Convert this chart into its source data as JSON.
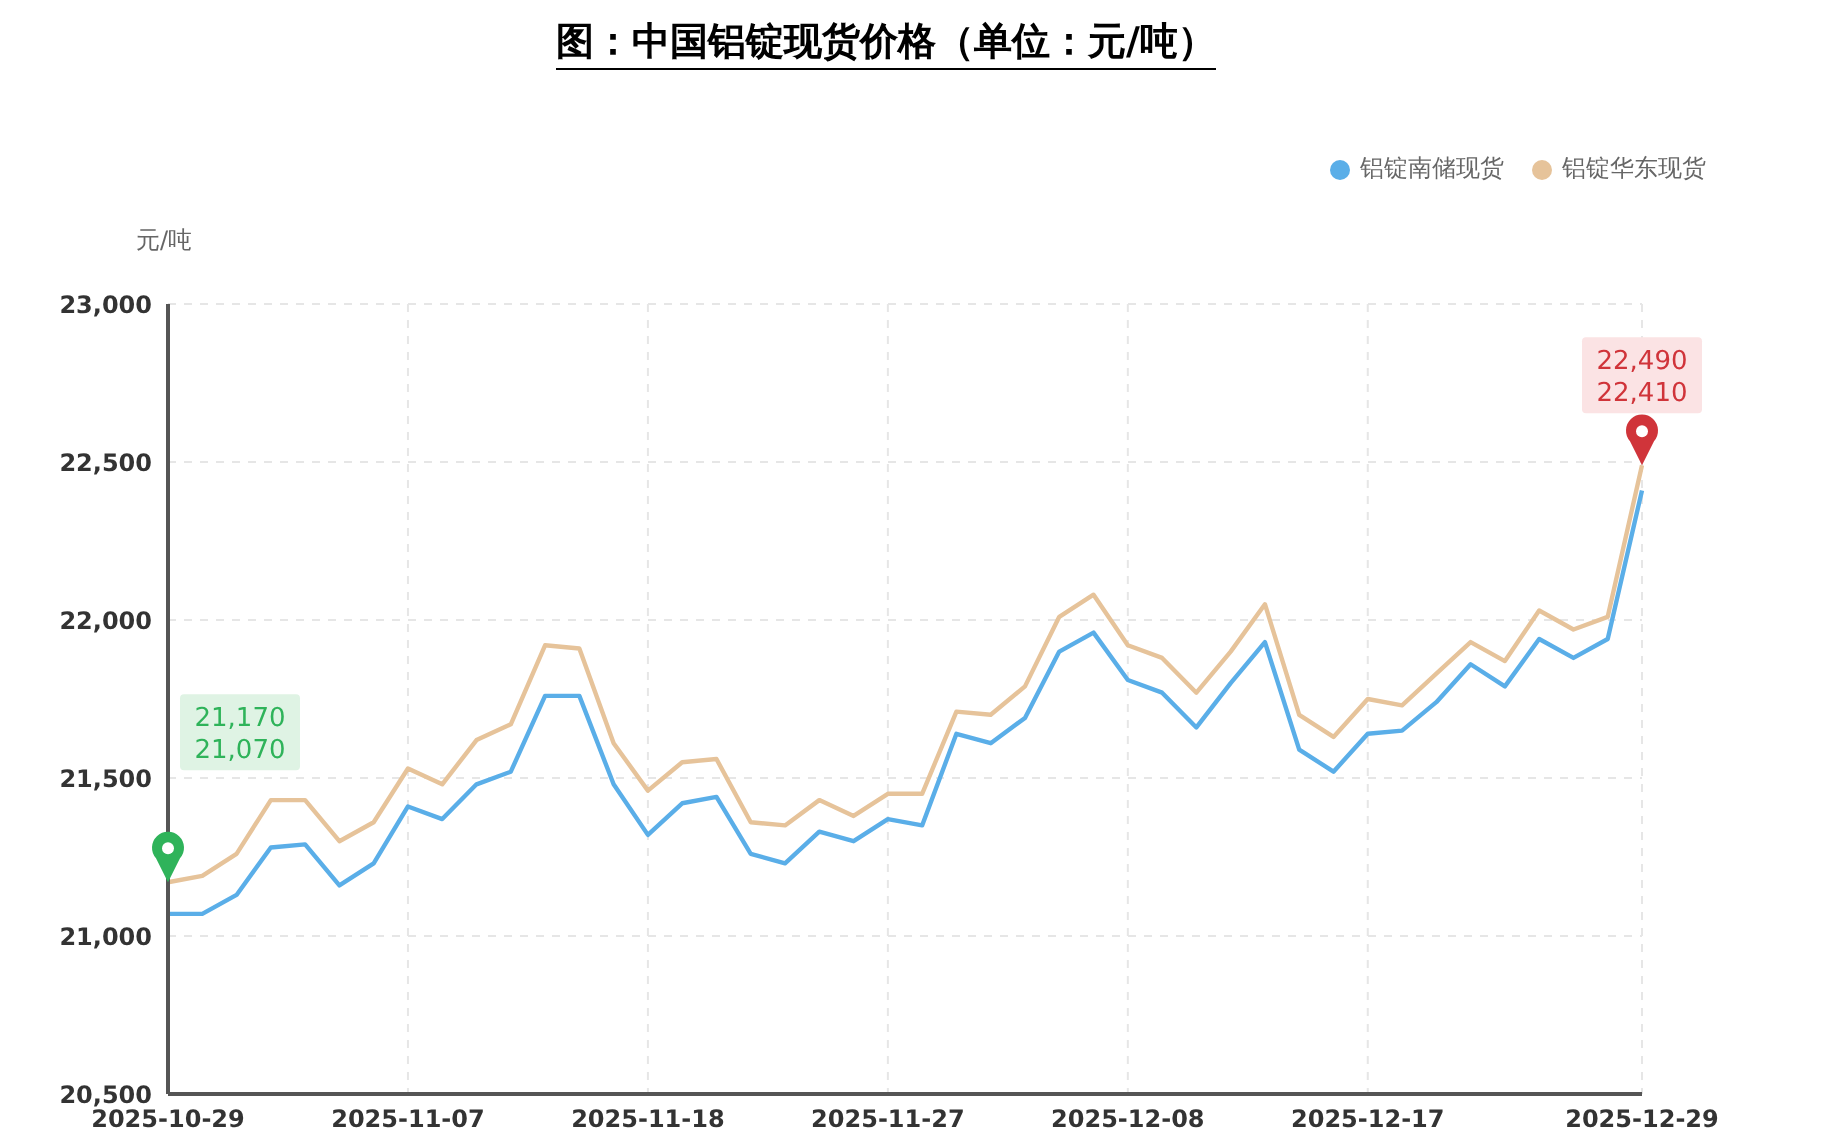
{
  "chart_data": {
    "type": "line",
    "title": "图：中国铝锭现货价格（单位：元/吨）",
    "ylabel": "元/吨",
    "categories": [
      "2025-10-29",
      null,
      null,
      null,
      null,
      null,
      null,
      "2025-11-07",
      null,
      null,
      null,
      null,
      null,
      null,
      "2025-11-18",
      null,
      null,
      null,
      null,
      null,
      null,
      "2025-11-27",
      null,
      null,
      null,
      null,
      null,
      null,
      "2025-12-08",
      null,
      null,
      null,
      null,
      null,
      null,
      "2025-12-17",
      null,
      null,
      null,
      null,
      null,
      null,
      null,
      "2025-12-29"
    ],
    "series": [
      {
        "name": "铝锭南储现货",
        "color": "#5aaee8",
        "values": [
          21070,
          21070,
          21130,
          21280,
          21290,
          21160,
          21230,
          21410,
          21370,
          21480,
          21520,
          21760,
          21760,
          21480,
          21320,
          21420,
          21440,
          21260,
          21230,
          21330,
          21300,
          21370,
          21350,
          21640,
          21610,
          21690,
          21900,
          21960,
          21810,
          21770,
          21660,
          21800,
          21930,
          21590,
          21520,
          21640,
          21650,
          21740,
          21860,
          21790,
          21940,
          21880,
          21940,
          22410
        ]
      },
      {
        "name": "铝锭华东现货",
        "color": "#e6c39a",
        "values": [
          21170,
          21190,
          21260,
          21430,
          21430,
          21300,
          21360,
          21530,
          21480,
          21620,
          21670,
          21920,
          21910,
          21610,
          21460,
          21550,
          21560,
          21360,
          21350,
          21430,
          21380,
          21450,
          21450,
          21710,
          21700,
          21790,
          22010,
          22080,
          21920,
          21880,
          21770,
          21900,
          22050,
          21700,
          21630,
          21750,
          21730,
          21830,
          21930,
          21870,
          22030,
          21970,
          22010,
          22490
        ]
      }
    ],
    "ylim": [
      20500,
      23000
    ],
    "yticks": [
      {
        "value": 20500,
        "label": "20,500"
      },
      {
        "value": 21000,
        "label": "21,000"
      },
      {
        "value": 21500,
        "label": "21,500"
      },
      {
        "value": 22000,
        "label": "22,000"
      },
      {
        "value": 22500,
        "label": "22,500"
      },
      {
        "value": 23000,
        "label": "23,000"
      }
    ],
    "grid": true,
    "legend": "top right",
    "annotations": [
      "21,170",
      "21,070",
      "22,490",
      "22,410"
    ]
  }
}
